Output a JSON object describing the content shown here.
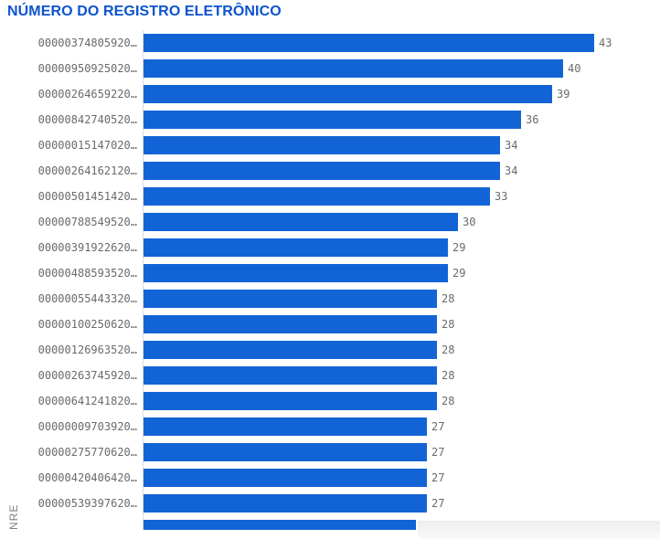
{
  "chart_data": {
    "type": "bar",
    "orientation": "horizontal",
    "title": "NÚMERO DO REGISTRO ELETRÔNICO",
    "ylabel": "NRE",
    "xlim": [
      0,
      43
    ],
    "grid": false,
    "legend": "none",
    "value_labels_shown": true,
    "categories": [
      "00000374805920…",
      "00000950925020…",
      "00000264659220…",
      "00000842740520…",
      "00000015147020…",
      "00000264162120…",
      "00000501451420…",
      "00000788549520…",
      "00000391922620…",
      "00000488593520…",
      "00000055443320…",
      "00000100250620…",
      "00000126963520…",
      "00000263745920…",
      "00000641241820…",
      "00000009703920…",
      "00000275770620…",
      "00000420406420…",
      "00000539397620…",
      ""
    ],
    "values": [
      43,
      40,
      39,
      36,
      34,
      34,
      33,
      30,
      29,
      29,
      28,
      28,
      28,
      28,
      28,
      27,
      27,
      27,
      27,
      26
    ],
    "last_bar_clipped": true,
    "colors": {
      "title": "#0c53cf",
      "bar": "#1264d6",
      "category_label": "#6a6a6a",
      "value_label": "#6a6a6a",
      "axis_line": "#dcdcdc",
      "background": "#ffffff",
      "bottom_right_panel": "#ededed"
    }
  }
}
